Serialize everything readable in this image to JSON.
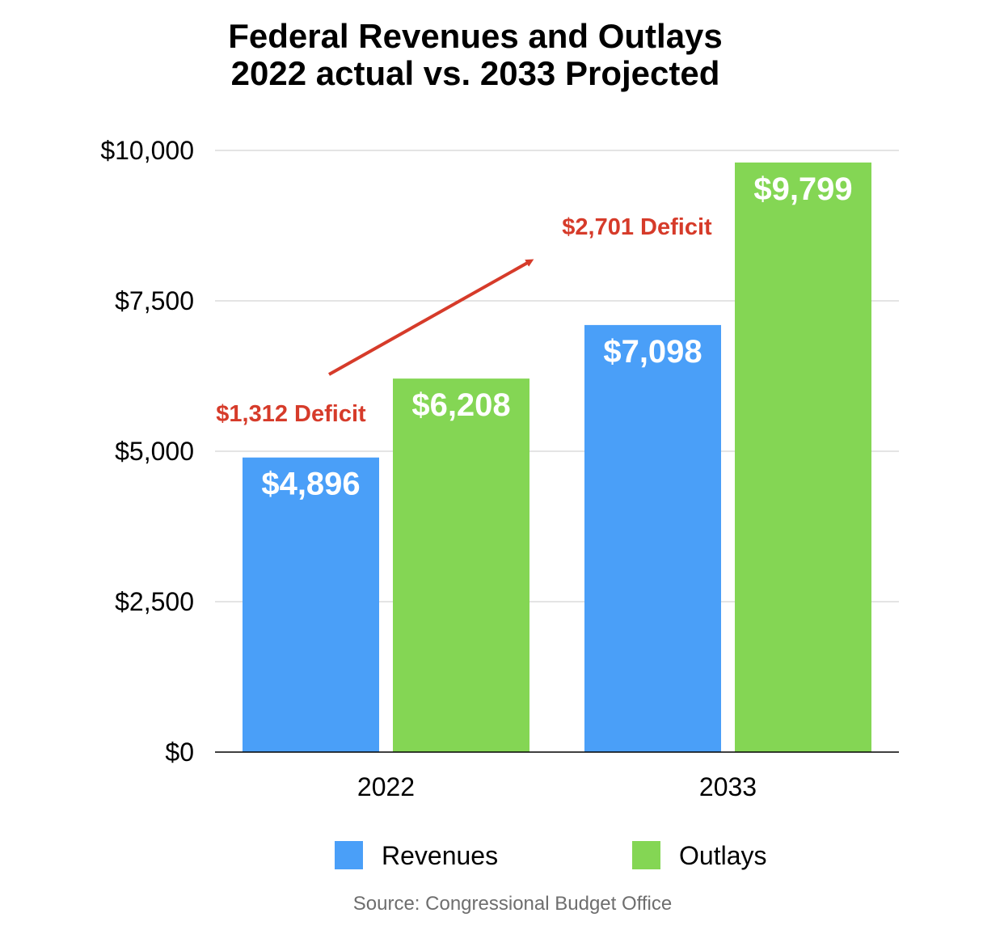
{
  "chart_data": {
    "type": "bar",
    "title": [
      "Federal Revenues and Outlays",
      "2022 actual vs. 2033 Projected"
    ],
    "categories": [
      "2022",
      "2033"
    ],
    "series": [
      {
        "name": "Revenues",
        "values": [
          4896,
          7098
        ],
        "labels": [
          "$4,896",
          "$7,098"
        ],
        "color": "#4a9ff8"
      },
      {
        "name": "Outlays",
        "values": [
          6208,
          9799
        ],
        "labels": [
          "$6,208",
          "$9,799"
        ],
        "color": "#84d654"
      }
    ],
    "ylim": [
      0,
      10000
    ],
    "yticks": [
      0,
      2500,
      5000,
      7500,
      10000
    ],
    "ytick_labels": [
      "$0",
      "$2,500",
      "$5,000",
      "$7,500",
      "$10,000"
    ],
    "xlabel": "",
    "ylabel": "",
    "grid": true,
    "legend_position": "bottom",
    "annotations": [
      {
        "text": "$1,312 Deficit",
        "category": "2022",
        "value": 1312
      },
      {
        "text": "$2,701 Deficit",
        "category": "2033",
        "value": 2701
      }
    ],
    "annotation_color": "#d63b2a"
  },
  "source": "Source: Congressional Budget Office"
}
